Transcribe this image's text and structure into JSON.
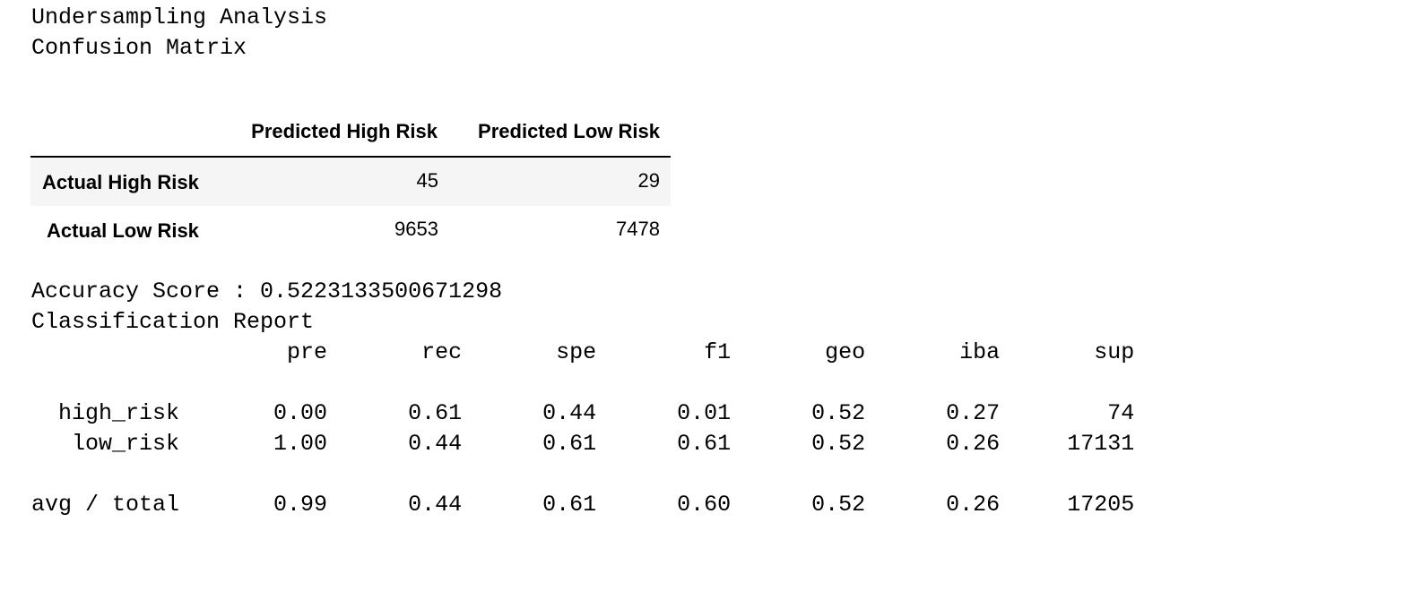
{
  "output": {
    "heading": "Undersampling Analysis",
    "subheading": "Confusion Matrix",
    "confusion_matrix": {
      "columns": [
        "Predicted High Risk",
        "Predicted Low Risk"
      ],
      "rows": [
        {
          "label": "Actual High Risk",
          "values": [
            "45",
            "29"
          ]
        },
        {
          "label": "Actual Low Risk",
          "values": [
            "9653",
            "7478"
          ]
        }
      ]
    },
    "accuracy_line": "Accuracy Score : 0.5223133500671298",
    "report_title": "Classification Report",
    "report_lines": {
      "header": "                   pre       rec       spe        f1       geo       iba       sup",
      "row1": "  high_risk       0.00      0.61      0.44      0.01      0.52      0.27        74",
      "row2": "   low_risk       1.00      0.44      0.61      0.61      0.52      0.26     17131",
      "avg": "avg / total       0.99      0.44      0.61      0.60      0.52      0.26     17205"
    }
  }
}
